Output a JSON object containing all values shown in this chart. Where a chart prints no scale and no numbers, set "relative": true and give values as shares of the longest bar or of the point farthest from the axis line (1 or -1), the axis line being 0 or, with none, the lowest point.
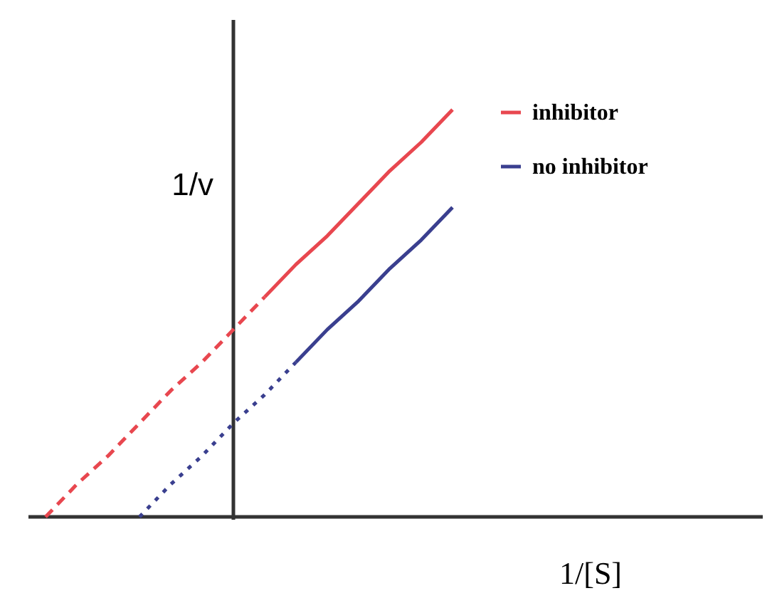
{
  "chart_data": {
    "type": "line",
    "relative": true,
    "xlabel": "1/[S]",
    "ylabel": "1/v",
    "legend": "top right",
    "categories": [
      null,
      null,
      null,
      null,
      null,
      null,
      null,
      null,
      null,
      null,
      null,
      null,
      null,
      null
    ],
    "series": [
      {
        "name": "inhibitor",
        "color": "#e8474f",
        "line_style": "solid",
        "values": [
          null,
          null,
          null,
          null,
          null,
          null,
          null,
          0.54,
          0.62,
          0.69,
          0.77,
          0.85,
          0.92,
          1
        ]
      },
      {
        "color": "#e8474f",
        "line_style": "dashed",
        "values": [
          0,
          0.08,
          0.15,
          0.23,
          0.31,
          0.38,
          0.46,
          0.54,
          null,
          null,
          null,
          null,
          null,
          null
        ]
      },
      {
        "name": "no inhibitor",
        "color": "#3a3f8f",
        "line_style": "solid",
        "values": [
          null,
          null,
          null,
          null,
          null,
          null,
          null,
          null,
          0.38,
          0.46,
          0.53,
          0.61,
          0.68,
          0.76
        ]
      },
      {
        "color": "#3a3f8f",
        "line_style": "dotted",
        "values": [
          null,
          null,
          null,
          0,
          0.08,
          0.15,
          0.23,
          0.3,
          0.38,
          null,
          null,
          null,
          null,
          null
        ]
      }
    ]
  }
}
